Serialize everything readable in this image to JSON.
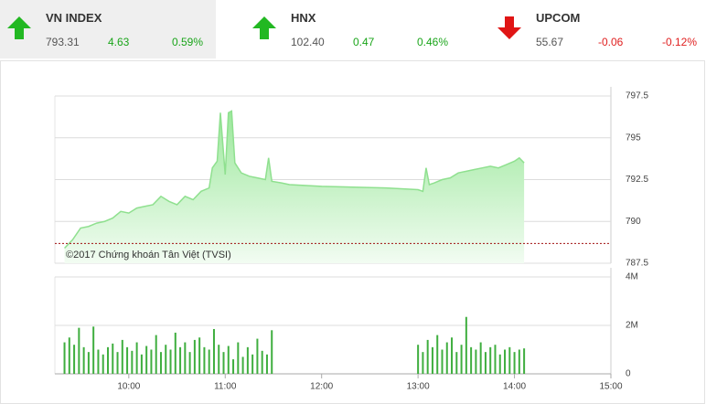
{
  "tickers": [
    {
      "name": "VN INDEX",
      "value": "793.31",
      "change": "4.63",
      "percent": "0.59%",
      "direction": "up",
      "selected": true
    },
    {
      "name": "HNX",
      "value": "102.40",
      "change": "0.47",
      "percent": "0.46%",
      "direction": "up",
      "selected": false
    },
    {
      "name": "UPCOM",
      "value": "55.67",
      "change": "-0.06",
      "percent": "-0.12%",
      "direction": "down",
      "selected": false
    }
  ],
  "chart_data": [
    {
      "type": "area",
      "color": "#8fe08f",
      "watermark": "©2017 Chứng khoán Tân Việt (TVSI)",
      "x": [
        560,
        565,
        570,
        575,
        580,
        585,
        590,
        595,
        600,
        605,
        610,
        615,
        620,
        625,
        630,
        635,
        640,
        645,
        650,
        652,
        655,
        657,
        660,
        662,
        664,
        666,
        670,
        675,
        680,
        685,
        687,
        689,
        695,
        700,
        720,
        760,
        780,
        783,
        785,
        787,
        790,
        795,
        800,
        805,
        810,
        815,
        820,
        825,
        830,
        835,
        840,
        843,
        846
      ],
      "values": [
        788.4,
        788.9,
        789.6,
        789.7,
        789.9,
        790.0,
        790.2,
        790.6,
        790.5,
        790.8,
        790.9,
        791.0,
        791.5,
        791.2,
        791.0,
        791.5,
        791.3,
        791.8,
        792.0,
        793.2,
        793.6,
        796.5,
        792.8,
        796.5,
        796.6,
        793.5,
        792.9,
        792.7,
        792.6,
        792.5,
        793.8,
        792.4,
        792.3,
        792.2,
        792.1,
        792.0,
        791.9,
        791.8,
        793.2,
        792.2,
        792.3,
        792.5,
        792.6,
        792.9,
        793.0,
        793.1,
        793.2,
        793.3,
        793.2,
        793.4,
        793.6,
        793.8,
        793.5
      ],
      "reference_line": {
        "value": 788.68,
        "color": "#a01010"
      },
      "xlim": [
        554,
        900
      ],
      "ylim": [
        787.5,
        797.5
      ],
      "yticks": [
        {
          "value": 787.5,
          "label": "787.5"
        },
        790,
        {
          "value": 792.5,
          "label": "792.5"
        },
        795,
        {
          "value": 797.5,
          "label": "797.5"
        }
      ],
      "grid": true
    },
    {
      "type": "bar",
      "color": "#3fae3f",
      "x": [
        560,
        563,
        566,
        569,
        572,
        575,
        578,
        581,
        584,
        587,
        590,
        593,
        596,
        599,
        602,
        605,
        608,
        611,
        614,
        617,
        620,
        623,
        626,
        629,
        632,
        635,
        638,
        641,
        644,
        647,
        650,
        653,
        656,
        659,
        662,
        665,
        668,
        671,
        674,
        677,
        680,
        683,
        686,
        689,
        780,
        783,
        786,
        789,
        792,
        795,
        798,
        801,
        804,
        807,
        810,
        813,
        816,
        819,
        822,
        825,
        828,
        831,
        834,
        837,
        840,
        843,
        846
      ],
      "values": [
        1300000,
        1500000,
        1200000,
        1900000,
        1100000,
        900000,
        1950000,
        1000000,
        800000,
        1100000,
        1250000,
        900000,
        1400000,
        1100000,
        950000,
        1300000,
        800000,
        1150000,
        1000000,
        1600000,
        900000,
        1200000,
        1000000,
        1700000,
        1100000,
        1300000,
        900000,
        1400000,
        1500000,
        1100000,
        1000000,
        1850000,
        1200000,
        900000,
        1150000,
        600000,
        1300000,
        700000,
        1100000,
        800000,
        1450000,
        950000,
        800000,
        1800000,
        1200000,
        900000,
        1400000,
        1100000,
        1600000,
        1000000,
        1300000,
        1500000,
        900000,
        1200000,
        2350000,
        1100000,
        1000000,
        1300000,
        900000,
        1100000,
        1200000,
        800000,
        1000000,
        1100000,
        900000,
        1000000,
        1050000
      ],
      "xlim": [
        554,
        900
      ],
      "xticks": [
        {
          "value": 600,
          "label": "10:00"
        },
        {
          "value": 660,
          "label": "11:00"
        },
        {
          "value": 720,
          "label": "12:00"
        },
        {
          "value": 780,
          "label": "13:00"
        },
        {
          "value": 840,
          "label": "14:00"
        },
        {
          "value": 900,
          "label": "15:00"
        }
      ],
      "ylim": [
        0,
        4000000
      ],
      "yticks": [
        0,
        {
          "value": 2000000,
          "label": "2M"
        },
        {
          "value": 4000000,
          "label": "4M"
        }
      ],
      "grid": true
    }
  ]
}
